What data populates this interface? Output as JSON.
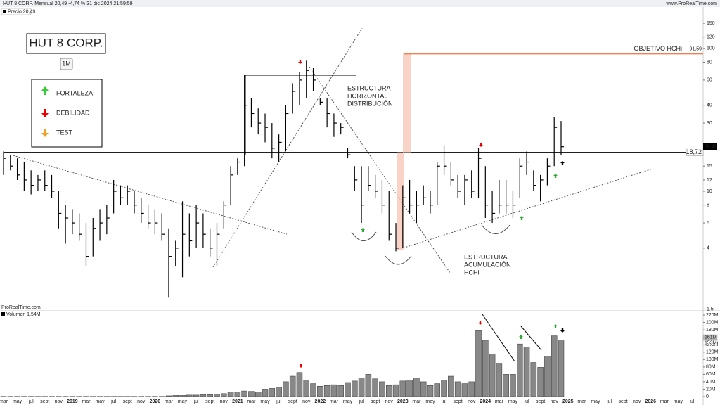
{
  "header": {
    "title": "HUT 8 CORP. Mensual 20,49 -4,74 % 31 dic 2024 21:59:59",
    "site": "www.ProRealTime.com",
    "price_label": "Precio 20,49",
    "watermark": "ProRealTime.com",
    "symbol": "HUT 8 CORP.",
    "timeframe": "1M"
  },
  "legend": {
    "items": [
      "FORTALEZA",
      "DEBILIDAD",
      "TEST"
    ]
  },
  "annotations": {
    "distribution": [
      "ESTRUCTURA",
      "HORIZONTAL",
      "DISTRIBUCIÓN"
    ],
    "accumulation": [
      "ESTRUCTURA",
      "ACUMULACIÓN",
      "HCHi"
    ],
    "objective": "OBJETIVO HCHi"
  },
  "chart_data": [
    {
      "type": "ohlc",
      "log_scale": true,
      "color": "#000000",
      "categories": [
        "mar",
        null,
        "may",
        null,
        "jul",
        null,
        "sept",
        null,
        "nov",
        null,
        "2019",
        null,
        "mar",
        null,
        "may",
        null,
        "jul",
        null,
        "sept",
        null,
        "nov",
        null,
        "2020",
        null,
        "mar",
        null,
        "may",
        null,
        "jul",
        null,
        "sept",
        null,
        "nov",
        null,
        "2021",
        null,
        "mar",
        null,
        "may",
        null,
        "jul",
        null,
        "sept",
        null,
        "nov",
        null,
        "2022",
        null,
        "mar",
        null,
        "may",
        null,
        "jul",
        null,
        "sept",
        null,
        "nov",
        null,
        "2023",
        null,
        "mar",
        null,
        "may",
        null,
        "jul",
        null,
        "sept",
        null,
        "nov",
        null,
        "2024",
        null,
        "mar",
        null,
        "may",
        null,
        "jul",
        null,
        "sept",
        null,
        "nov",
        null,
        "2025",
        null,
        "mar",
        null,
        "may",
        null,
        "jul",
        null,
        "sept",
        null,
        "nov",
        null,
        "2026",
        null,
        "mar",
        null,
        "may",
        null,
        "jul"
      ],
      "high": [
        19,
        18,
        17,
        16,
        14,
        13,
        14,
        13,
        10,
        8,
        7.5,
        7,
        6,
        6.5,
        7.5,
        8,
        12,
        11,
        11,
        10,
        9,
        8,
        7.5,
        7,
        5.5,
        4.5,
        8.5,
        7,
        8,
        7,
        5.5,
        6,
        8.5,
        15,
        17,
        65,
        45,
        38,
        35,
        30,
        25,
        40,
        57,
        68,
        82,
        73,
        45,
        45,
        35,
        30,
        20,
        15,
        15,
        15,
        13,
        12,
        10,
        6,
        11,
        12,
        10,
        11,
        10,
        16,
        21,
        16,
        13,
        13,
        14,
        20,
        15,
        10,
        12,
        12,
        10,
        17,
        19,
        14,
        13,
        17,
        33,
        31,
        null,
        null,
        null,
        null,
        null,
        null,
        null,
        null,
        null,
        null,
        null,
        null,
        null,
        null,
        null,
        null,
        null,
        null,
        null
      ],
      "low": [
        13,
        14,
        12,
        10,
        9.5,
        10,
        10,
        9,
        5.5,
        4.3,
        5,
        4.5,
        3,
        3.5,
        4.5,
        5,
        7,
        8,
        8,
        7,
        6,
        5.5,
        5,
        4.5,
        1.8,
        3,
        2.5,
        3.5,
        4,
        4,
        3.5,
        3,
        5.5,
        8,
        13,
        15,
        28,
        25,
        22,
        17,
        16,
        19,
        35,
        40,
        45,
        50,
        40,
        28,
        24,
        25,
        17,
        10,
        6,
        10,
        9,
        7,
        4.5,
        3.8,
        4,
        7,
        6,
        8,
        7,
        8,
        13,
        11,
        9,
        8,
        9,
        9,
        6.5,
        6,
        7,
        7,
        6.5,
        9,
        13,
        10,
        8.5,
        11,
        15,
        18,
        null,
        null,
        null,
        null,
        null,
        null,
        null,
        null,
        null,
        null,
        null,
        null,
        null,
        null,
        null,
        null,
        null,
        null,
        null
      ],
      "close": [
        17,
        15,
        13,
        12,
        11,
        12,
        11,
        10,
        7,
        6.5,
        6,
        5,
        3.5,
        5.5,
        6,
        6.5,
        10,
        9,
        10,
        8,
        7,
        6,
        6,
        5,
        3.5,
        4,
        5,
        4.5,
        6,
        5,
        4,
        5,
        8,
        13,
        16,
        40,
        35,
        30,
        28,
        20,
        22,
        35,
        50,
        60,
        70,
        60,
        42,
        35,
        30,
        28,
        18,
        12,
        8,
        11,
        10,
        8,
        5,
        4,
        9,
        8,
        8,
        9,
        8,
        15,
        15,
        12,
        10,
        12,
        10,
        17,
        8,
        7,
        8,
        8,
        8,
        15,
        16,
        11,
        12,
        15,
        28,
        20.49,
        null,
        null,
        null,
        null,
        null,
        null,
        null,
        null,
        null,
        null,
        null,
        null,
        null,
        null,
        null,
        null,
        null,
        null,
        null
      ],
      "last_label": "20,49",
      "ylim": [
        1.49,
        170
      ],
      "yticks": [
        150,
        120,
        100,
        80,
        60,
        40,
        30,
        15,
        12,
        10,
        8,
        6,
        4,
        1.5
      ],
      "levels": [
        {
          "value": 18.72,
          "label": "18,72",
          "color": "#000000"
        },
        {
          "value": 91.59,
          "label": "91,59",
          "color": "#f08050"
        }
      ]
    },
    {
      "type": "bar",
      "title": "Volumen 1.54M",
      "color": "#888888",
      "values": [
        0.5,
        0.5,
        0.5,
        0.5,
        0.5,
        0.5,
        0.5,
        0.5,
        0.5,
        0.5,
        0.5,
        0.5,
        0.5,
        0.5,
        0.5,
        0.5,
        0.5,
        0.5,
        0.5,
        0.5,
        0.5,
        0.5,
        0.5,
        0.5,
        2,
        3,
        3,
        4,
        4,
        5,
        5,
        6,
        8,
        12,
        12,
        15,
        14,
        12,
        20,
        22,
        25,
        40,
        55,
        65,
        45,
        35,
        28,
        30,
        32,
        30,
        38,
        42,
        50,
        60,
        48,
        40,
        30,
        32,
        42,
        45,
        50,
        40,
        30,
        35,
        45,
        55,
        40,
        35,
        40,
        178,
        152,
        115,
        90,
        60,
        60,
        142,
        134,
        92,
        79,
        109,
        164,
        153,
        null,
        null,
        null,
        null,
        null,
        null,
        null,
        null,
        null,
        null,
        null,
        null,
        null,
        null,
        null,
        null,
        null,
        null,
        null
      ],
      "tags": [
        "161M",
        "153M"
      ],
      "ylim": [
        0,
        222
      ],
      "yticks": [
        {
          "value": 220,
          "label": "220M"
        },
        {
          "value": 200,
          "label": "200M"
        },
        {
          "value": 180,
          "label": "180M"
        },
        {
          "value": 140,
          "label": "140M"
        },
        {
          "value": 120,
          "label": "120M"
        },
        {
          "value": 100,
          "label": "100M"
        },
        {
          "value": 80,
          "label": "80M"
        },
        {
          "value": 60,
          "label": "60M"
        },
        {
          "value": 40,
          "label": "40M"
        },
        {
          "value": 20,
          "label": "20M"
        },
        0
      ]
    }
  ]
}
